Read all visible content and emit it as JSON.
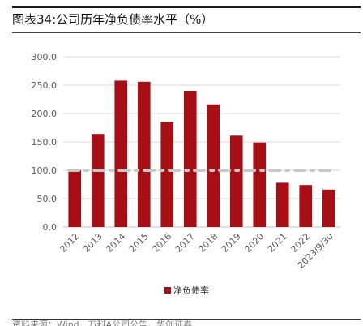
{
  "figure": {
    "title": "图表34:公司历年净负债率水平（%）",
    "source": "资料来源：Wind，万科A公司公告，华创证券"
  },
  "colors": {
    "bar": "#a50f15",
    "reference_line": "#c8c8c8",
    "grid": "#d9d9d9",
    "axis_text": "#595959"
  },
  "chart_data": {
    "type": "bar",
    "categories": [
      "2012",
      "2013",
      "2014",
      "2015",
      "2016",
      "2017",
      "2018",
      "2019",
      "2020",
      "2021",
      "2022",
      "2023/9/30"
    ],
    "series": [
      {
        "name": "净负债率",
        "values": [
          100,
          164,
          258,
          256,
          185,
          240,
          216,
          161,
          149,
          78,
          74,
          66
        ]
      }
    ],
    "reference_line": {
      "value": 100,
      "style": "dashed-dotted"
    },
    "ylim": [
      0,
      300
    ],
    "yticks": [
      "0.0",
      "50.0",
      "100.0",
      "150.0",
      "200.0",
      "250.0",
      "300.0"
    ],
    "xlabel": "",
    "ylabel": "",
    "grid": true,
    "legend": "bottom-center"
  }
}
